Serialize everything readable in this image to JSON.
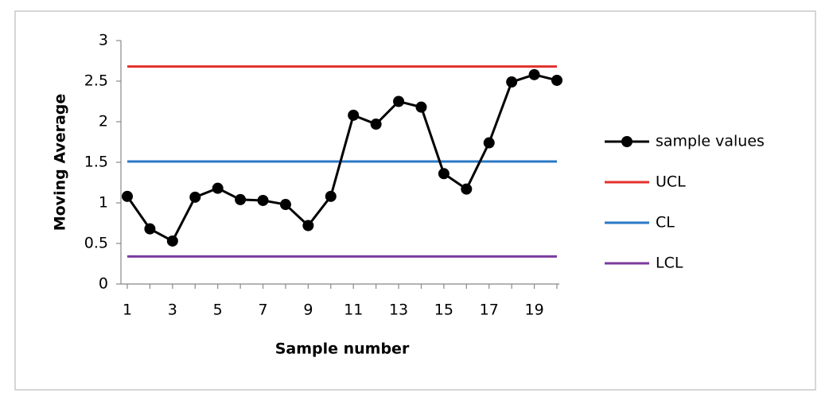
{
  "chart_data": {
    "type": "line",
    "x_label": "Sample number",
    "y_label": "Moving Average",
    "categories": [
      "1",
      null,
      "3",
      null,
      "5",
      null,
      "7",
      null,
      "9",
      null,
      "11",
      null,
      "13",
      null,
      "15",
      null,
      "17",
      null,
      "19",
      null
    ],
    "series": [
      {
        "name": "sample values",
        "color": "#000000",
        "marker": "circle",
        "values": [
          1.08,
          0.68,
          0.53,
          1.07,
          1.18,
          1.04,
          1.03,
          0.98,
          0.72,
          1.08,
          2.08,
          1.97,
          2.25,
          2.18,
          1.36,
          1.17,
          1.74,
          2.49,
          2.58,
          2.51
        ]
      },
      {
        "name": "UCL",
        "color": "#e3302b",
        "values": [
          2.68,
          2.68,
          2.68,
          2.68,
          2.68,
          2.68,
          2.68,
          2.68,
          2.68,
          2.68,
          2.68,
          2.68,
          2.68,
          2.68,
          2.68,
          2.68,
          2.68,
          2.68,
          2.68,
          2.68
        ]
      },
      {
        "name": "CL",
        "color": "#2a78c6",
        "values": [
          1.51,
          1.51,
          1.51,
          1.51,
          1.51,
          1.51,
          1.51,
          1.51,
          1.51,
          1.51,
          1.51,
          1.51,
          1.51,
          1.51,
          1.51,
          1.51,
          1.51,
          1.51,
          1.51,
          1.51
        ]
      },
      {
        "name": "LCL",
        "color": "#7b3b9e",
        "values": [
          0.34,
          0.34,
          0.34,
          0.34,
          0.34,
          0.34,
          0.34,
          0.34,
          0.34,
          0.34,
          0.34,
          0.34,
          0.34,
          0.34,
          0.34,
          0.34,
          0.34,
          0.34,
          0.34,
          0.34
        ]
      }
    ],
    "ylim": [
      0,
      3
    ],
    "yticks": [
      0,
      0.5,
      1,
      1.5,
      2,
      2.5,
      3
    ],
    "legend": "right"
  }
}
